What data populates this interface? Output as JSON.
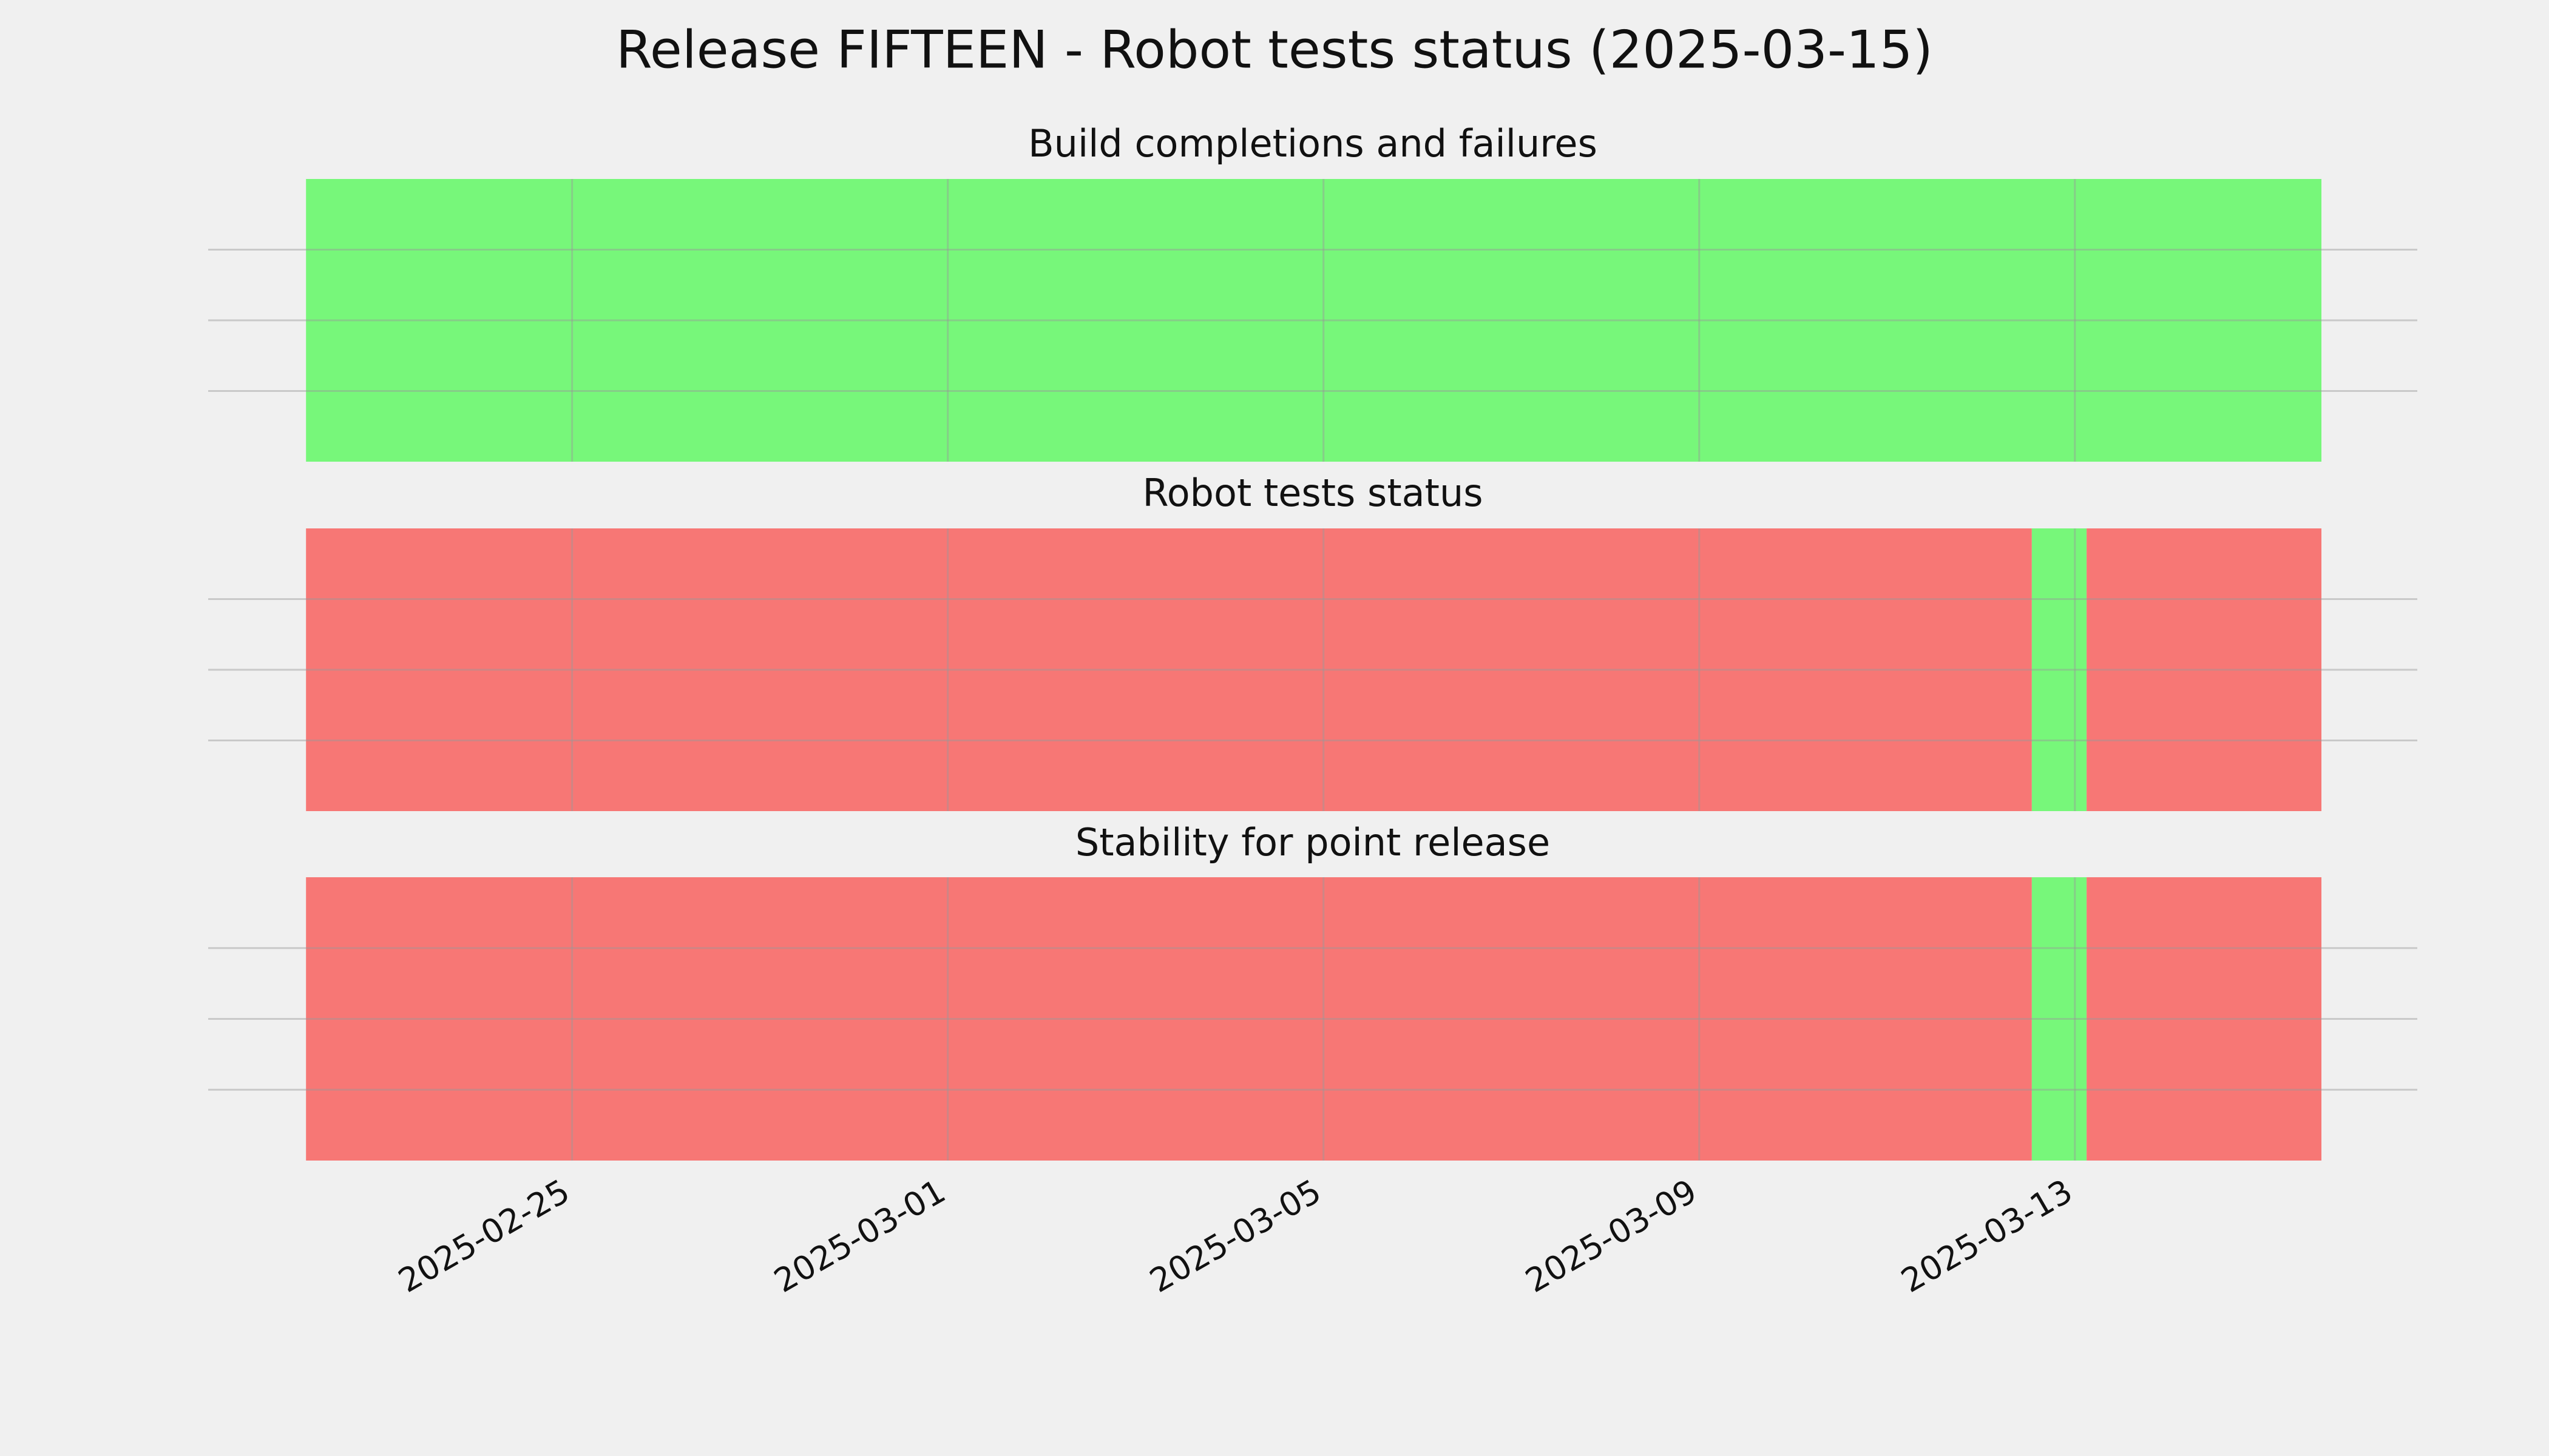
{
  "chart_data": {
    "type": "timeline",
    "title": "Release FIFTEEN - Robot tests status (2025-03-15)",
    "xlim": [
      "2025-02-21T03:00",
      "2025-03-16T15:30"
    ],
    "xticks": [
      "2025-02-25",
      "2025-03-01",
      "2025-03-05",
      "2025-03-09",
      "2025-03-13"
    ],
    "ylim": [
      0,
      1
    ],
    "yticks": [
      0.25,
      0.5,
      0.75
    ],
    "grid": true,
    "panels": [
      {
        "title": "Build completions and failures",
        "segments": [
          {
            "start": "2025-02-22T04:00",
            "end": "2025-03-15T15:00",
            "color": "#77f77a"
          }
        ]
      },
      {
        "title": "Robot tests status",
        "segments": [
          {
            "start": "2025-02-22T04:00",
            "end": "2025-03-12T13:00",
            "color": "#f77775"
          },
          {
            "start": "2025-03-12T13:00",
            "end": "2025-03-13T03:00",
            "color": "#77f77a"
          },
          {
            "start": "2025-03-13T03:00",
            "end": "2025-03-15T15:00",
            "color": "#f77775"
          }
        ]
      },
      {
        "title": "Stability for point release",
        "segments": [
          {
            "start": "2025-02-22T04:00",
            "end": "2025-03-12T13:00",
            "color": "#f77775"
          },
          {
            "start": "2025-03-12T13:00",
            "end": "2025-03-13T03:00",
            "color": "#77f77a"
          },
          {
            "start": "2025-03-13T03:00",
            "end": "2025-03-15T15:00",
            "color": "#f77775"
          }
        ]
      }
    ]
  }
}
